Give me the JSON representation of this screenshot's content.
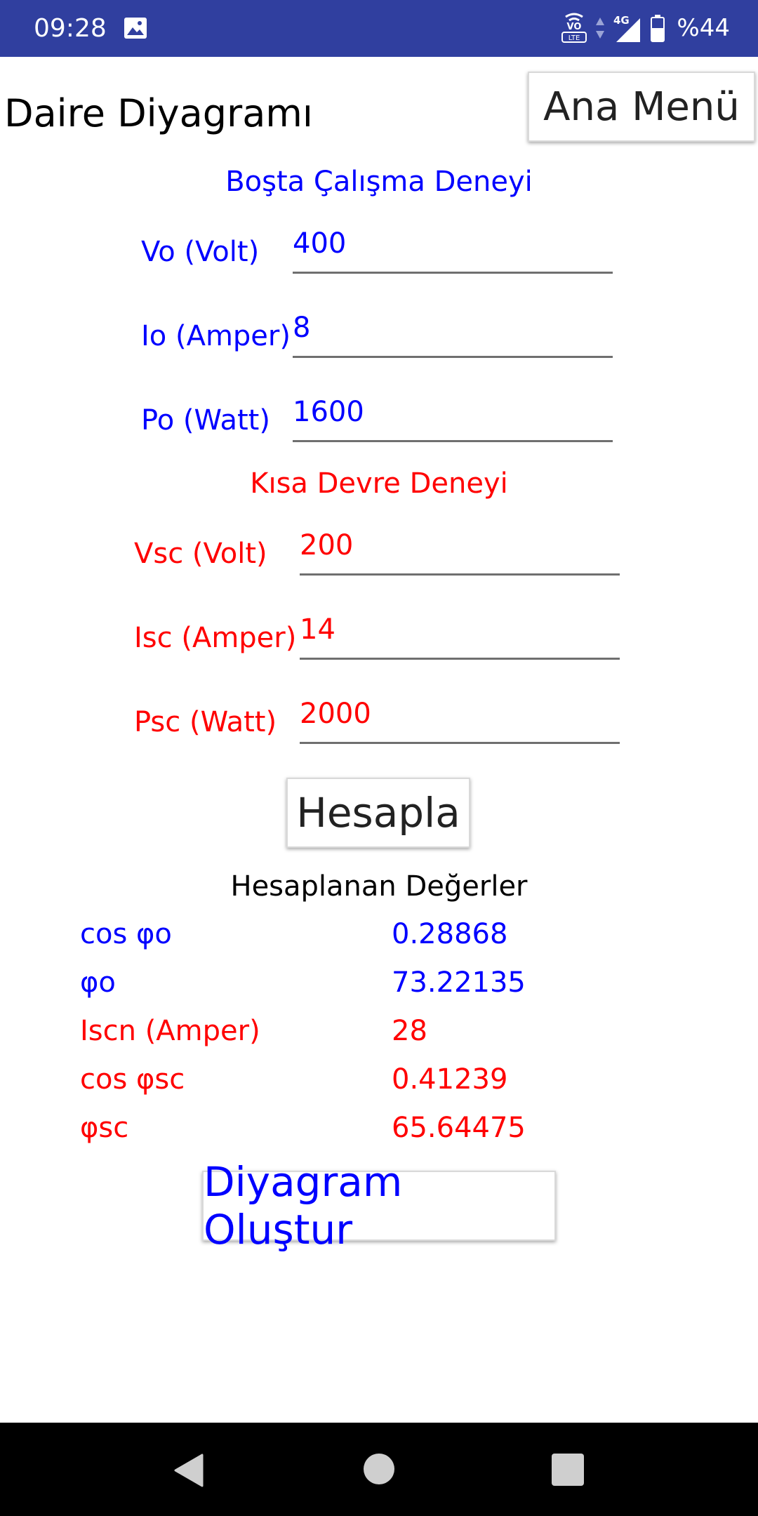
{
  "status_bar": {
    "time": "09:28",
    "battery_text": "%44",
    "network": "4G",
    "volte": "VO LTE"
  },
  "header": {
    "title": "Daire Diyagramı",
    "menu_button": "Ana Menü"
  },
  "no_load_test": {
    "title": "Boşta Çalışma Deneyi",
    "fields": [
      {
        "label": "Vo (Volt)",
        "value": "400"
      },
      {
        "label": "Io (Amper)",
        "value": "8"
      },
      {
        "label": "Po (Watt)",
        "value": "1600"
      }
    ]
  },
  "short_circuit_test": {
    "title": "Kısa Devre Deneyi",
    "fields": [
      {
        "label": "Vsc (Volt)",
        "value": "200"
      },
      {
        "label": "Isc (Amper)",
        "value": "14"
      },
      {
        "label": "Psc (Watt)",
        "value": "2000"
      }
    ]
  },
  "calculate_button": "Hesapla",
  "results": {
    "title": "Hesaplanan Değerler",
    "rows": [
      {
        "label": "cos φo",
        "value": "0.28868"
      },
      {
        "label": "φo",
        "value": "73.22135"
      },
      {
        "label": "Iscn (Amper)",
        "value": "28"
      },
      {
        "label": "cos φsc",
        "value": "0.41239"
      },
      {
        "label": "φsc",
        "value": "65.64475"
      }
    ]
  },
  "diagram_button": "Diyagram Oluştur",
  "colors": {
    "status_bar": "#303f9f",
    "blue_text": "#0000ff",
    "red_text": "#ff0000",
    "nav_bar": "#000000"
  }
}
